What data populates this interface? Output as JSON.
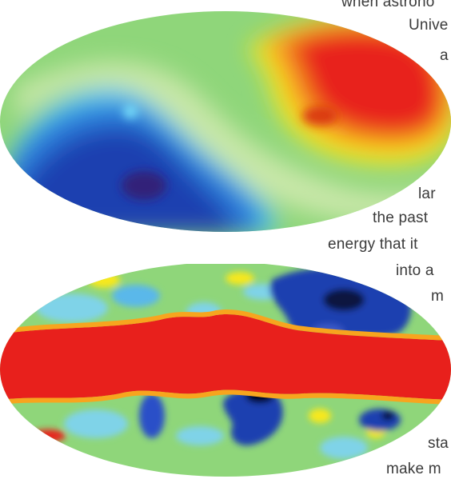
{
  "text_fragments": [
    "when astrono",
    "Unive",
    "a",
    "lar",
    "the past",
    "energy that it",
    "into a",
    "m",
    "sta",
    "make m"
  ],
  "colors": {
    "hot": "#e8201c",
    "warm": "#f7e81e",
    "mid": "#8fd67a",
    "cool": "#3aa3e8",
    "cold": "#1e3fb0",
    "coldest": "#050510"
  },
  "images": [
    {
      "name": "cmb-dipole-sky-map",
      "description_visible": false
    },
    {
      "name": "cmb-galactic-sky-map",
      "description_visible": false
    }
  ]
}
